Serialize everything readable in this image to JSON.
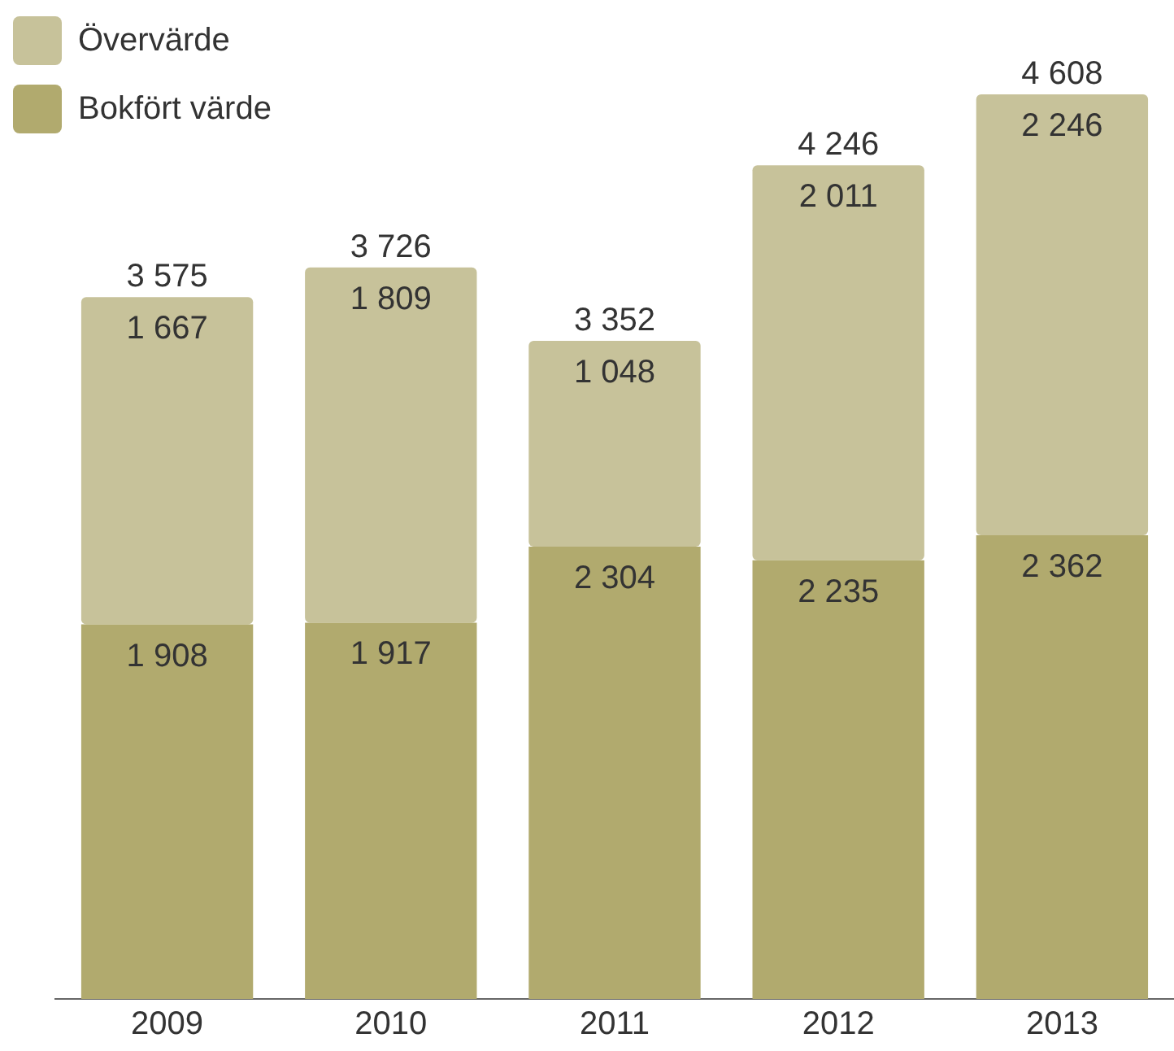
{
  "chart_data": {
    "type": "bar",
    "stacked": true,
    "categories": [
      "2009",
      "2010",
      "2011",
      "2012",
      "2013"
    ],
    "series": [
      {
        "name": "Bokfört värde",
        "color": "#b1aa6e",
        "values": [
          1908,
          1917,
          2304,
          2235,
          2362
        ],
        "value_labels": [
          "1 908",
          "1 917",
          "2 304",
          "2 235",
          "2 362"
        ]
      },
      {
        "name": "Övervärde",
        "color": "#c7c29a",
        "values": [
          1667,
          1809,
          1048,
          2011,
          2246
        ],
        "value_labels": [
          "1 667",
          "1 809",
          "1 048",
          "2 011",
          "2 246"
        ]
      }
    ],
    "totals": [
      "3 575",
      "3 726",
      "3 352",
      "4 246",
      "4 608"
    ],
    "legend": "top left",
    "grid": false,
    "tick_labels": "x"
  }
}
